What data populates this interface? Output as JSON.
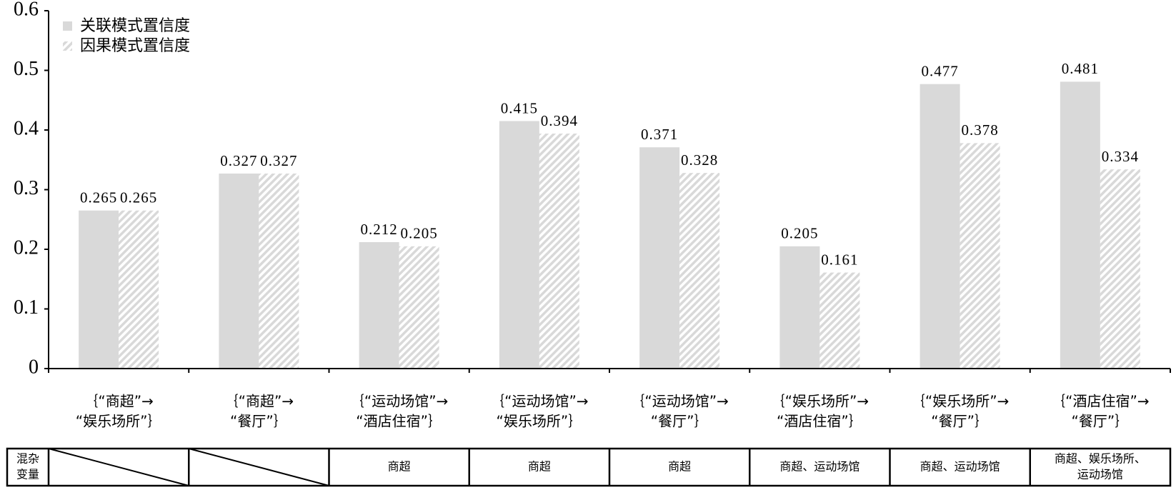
{
  "chart_data": {
    "type": "bar",
    "categories": [
      [
        "｛“商超”→",
        "“娱乐场所”｝"
      ],
      [
        "｛“商超”→",
        "“餐厅”｝"
      ],
      [
        "｛“运动场馆”→",
        "“酒店住宿”｝"
      ],
      [
        "｛“运动场馆”→",
        "“娱乐场所”｝"
      ],
      [
        "｛“运动场馆”→",
        "“餐厅”｝"
      ],
      [
        "｛“娱乐场所”→",
        "“酒店住宿”｝"
      ],
      [
        "｛“娱乐场所”→",
        "“餐厅”｝"
      ],
      [
        "｛“酒店住宿”→",
        "“餐厅”｝"
      ]
    ],
    "series": [
      {
        "name": "关联模式置信度",
        "color": "#d9d9d9",
        "values": [
          0.265,
          0.327,
          0.212,
          0.415,
          0.371,
          0.205,
          0.477,
          0.481
        ]
      },
      {
        "name": "因果模式置信度",
        "color": "#d9d9d9",
        "pattern": "hatch",
        "values": [
          0.265,
          0.327,
          0.205,
          0.394,
          0.328,
          0.161,
          0.378,
          0.334
        ]
      }
    ],
    "ylim": [
      0,
      0.6
    ],
    "yticks": [
      0,
      0.1,
      0.2,
      0.3,
      0.4,
      0.5,
      0.6
    ],
    "legend": "top-left"
  },
  "table": {
    "header": [
      "混杂",
      "变量"
    ],
    "cells": [
      null,
      null,
      [
        "商超"
      ],
      [
        "商超"
      ],
      [
        "商超"
      ],
      [
        "商超、运动场馆"
      ],
      [
        "商超、运动场馆"
      ],
      [
        "商超、娱乐场所、",
        "运动场馆"
      ]
    ]
  }
}
